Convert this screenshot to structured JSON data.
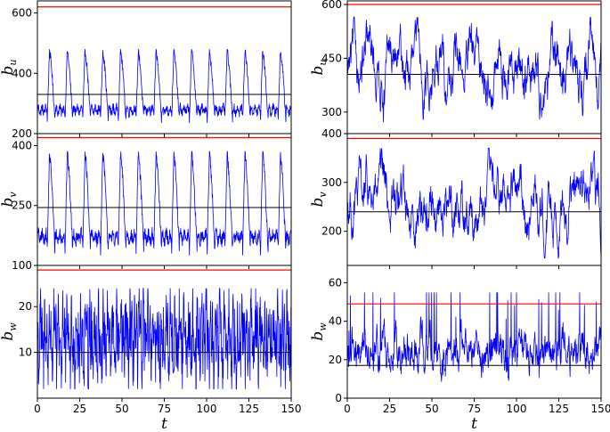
{
  "colors": {
    "series": "#0000ff",
    "upper_line": "#ff0000",
    "mean_line": "#000000",
    "frame": "#000000"
  },
  "chart_data": [
    {
      "type": "line",
      "column": "left",
      "ylabel": "b",
      "ylabel_sub": "u",
      "xlabel": "",
      "xlim": [
        0,
        150
      ],
      "ylim": [
        200,
        640
      ],
      "yticks": [
        200,
        400,
        600
      ],
      "ytick_labels": [
        "200",
        "400",
        "600"
      ],
      "xticks": [
        0,
        25,
        50,
        75,
        100,
        125,
        150
      ],
      "xtick_labels": [
        "",
        "",
        "",
        "",
        "",
        "",
        ""
      ],
      "reference_lines": {
        "upper": 620,
        "mean": 330
      },
      "series": [
        {
          "x": [
            0,
            150
          ],
          "values_summary": {
            "min": 235,
            "max": 480,
            "period": 10.5,
            "style": "periodic"
          }
        }
      ]
    },
    {
      "type": "line",
      "column": "left",
      "ylabel": "b",
      "ylabel_sub": "v",
      "xlabel": "",
      "xlim": [
        0,
        150
      ],
      "ylim": [
        100,
        430
      ],
      "yticks": [
        100,
        250,
        400
      ],
      "ytick_labels": [
        "100",
        "250",
        "400"
      ],
      "xticks": [
        0,
        25,
        50,
        75,
        100,
        125,
        150
      ],
      "xtick_labels": [
        "",
        "",
        "",
        "",
        "",
        "",
        ""
      ],
      "reference_lines": {
        "upper": 420,
        "mean": 245
      },
      "series": [
        {
          "x": [
            0,
            150
          ],
          "values_summary": {
            "min": 125,
            "max": 385,
            "period": 10.5,
            "style": "periodic"
          }
        }
      ]
    },
    {
      "type": "line",
      "column": "left",
      "ylabel": "b",
      "ylabel_sub": "w",
      "xlabel": "t",
      "xlim": [
        0,
        150
      ],
      "ylim": [
        0,
        29
      ],
      "yticks": [
        10,
        20
      ],
      "ytick_labels": [
        "10",
        "20"
      ],
      "xticks": [
        0,
        25,
        50,
        75,
        100,
        125,
        150
      ],
      "xtick_labels": [
        "0",
        "25",
        "50",
        "75",
        "100",
        "125",
        "150"
      ],
      "reference_lines": {
        "upper": 28,
        "mean": 10
      },
      "series": [
        {
          "x": [
            0,
            150
          ],
          "values_summary": {
            "min": 2,
            "max": 24,
            "period": 5.3,
            "style": "periodic-fast"
          }
        }
      ]
    },
    {
      "type": "line",
      "column": "right",
      "ylabel": "b",
      "ylabel_sub": "u",
      "xlabel": "",
      "xlim": [
        0,
        150
      ],
      "ylim": [
        240,
        610
      ],
      "yticks": [
        300,
        450,
        600
      ],
      "ytick_labels": [
        "300",
        "450",
        "600"
      ],
      "xticks": [
        0,
        25,
        50,
        75,
        100,
        125,
        150
      ],
      "xtick_labels": [
        "",
        "",
        "",
        "",
        "",
        "",
        ""
      ],
      "reference_lines": {
        "upper": 600,
        "mean": 405
      },
      "series": [
        {
          "x": [
            0,
            150
          ],
          "values_summary": {
            "min": 265,
            "max": 565,
            "style": "chaotic"
          }
        }
      ]
    },
    {
      "type": "line",
      "column": "right",
      "ylabel": "b",
      "ylabel_sub": "v",
      "xlabel": "",
      "xlim": [
        0,
        150
      ],
      "ylim": [
        130,
        400
      ],
      "yticks": [
        200,
        300,
        400
      ],
      "ytick_labels": [
        "200",
        "300",
        "400"
      ],
      "xticks": [
        0,
        25,
        50,
        75,
        100,
        125,
        150
      ],
      "xtick_labels": [
        "",
        "",
        "",
        "",
        "",
        "",
        ""
      ],
      "reference_lines": {
        "upper": 390,
        "mean": 240
      },
      "series": [
        {
          "x": [
            0,
            150
          ],
          "values_summary": {
            "min": 145,
            "max": 370,
            "style": "chaotic"
          }
        }
      ]
    },
    {
      "type": "line",
      "column": "right",
      "ylabel": "b",
      "ylabel_sub": "w",
      "xlabel": "t",
      "xlim": [
        0,
        150
      ],
      "ylim": [
        0,
        69
      ],
      "yticks": [
        0,
        20,
        40,
        60
      ],
      "ytick_labels": [
        "0",
        "20",
        "40",
        "60"
      ],
      "xticks": [
        0,
        25,
        50,
        75,
        100,
        125,
        150
      ],
      "xtick_labels": [
        "0",
        "25",
        "50",
        "75",
        "100",
        "125",
        "150"
      ],
      "reference_lines": {
        "upper": 49,
        "mean": 17
      },
      "series": [
        {
          "x": [
            0,
            150
          ],
          "values_summary": {
            "min": 3,
            "max": 55,
            "style": "chaotic-fast"
          }
        }
      ]
    }
  ]
}
